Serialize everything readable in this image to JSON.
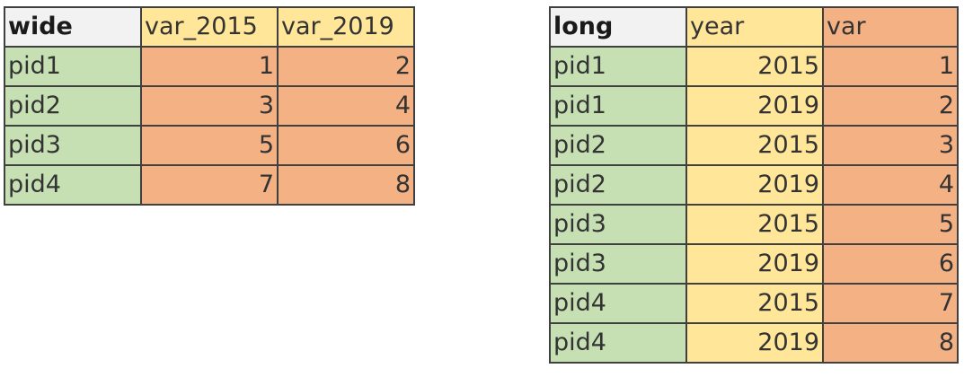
{
  "wide_table": {
    "headers": [
      "wide",
      "var_2015",
      "var_2019"
    ],
    "rows": [
      [
        "pid1",
        "1",
        "2"
      ],
      [
        "pid2",
        "3",
        "4"
      ],
      [
        "pid3",
        "5",
        "6"
      ],
      [
        "pid4",
        "7",
        "8"
      ]
    ]
  },
  "long_table": {
    "headers": [
      "long",
      "year",
      "var"
    ],
    "rows": [
      [
        "pid1",
        "2015",
        "1"
      ],
      [
        "pid1",
        "2019",
        "2"
      ],
      [
        "pid2",
        "2015",
        "3"
      ],
      [
        "pid2",
        "2019",
        "4"
      ],
      [
        "pid3",
        "2015",
        "5"
      ],
      [
        "pid3",
        "2019",
        "6"
      ],
      [
        "pid4",
        "2015",
        "7"
      ],
      [
        "pid4",
        "2019",
        "8"
      ]
    ]
  },
  "colors": {
    "header_gray": "#f2f2f2",
    "id_green": "#c6e0b4",
    "year_yellow": "#ffe699",
    "value_orange": "#f4b183",
    "border": "#404040"
  }
}
